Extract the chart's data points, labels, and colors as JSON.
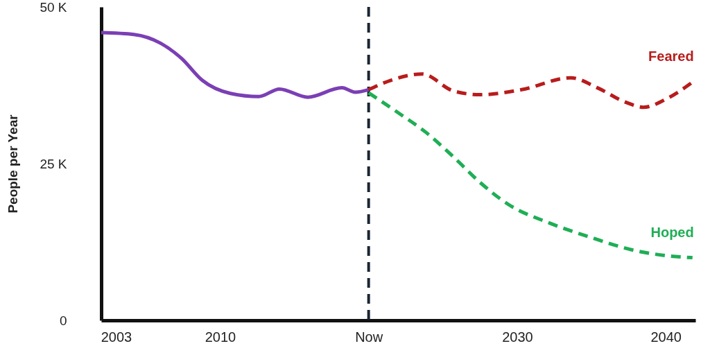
{
  "chart_data": {
    "type": "line",
    "ylabel": "People per Year",
    "xlim": [
      2002,
      2042
    ],
    "ylim": [
      0,
      50
    ],
    "xticks": [
      2003,
      2010,
      {
        "value": 2020,
        "label": "Now"
      },
      2030,
      2040
    ],
    "yticks": [
      {
        "value": 0,
        "label": "0"
      },
      {
        "value": 25,
        "label": "25 K"
      },
      {
        "value": 50,
        "label": "50 K"
      }
    ],
    "grid": false,
    "marker": "none",
    "ref_lines": [
      {
        "axis": "x",
        "value": 2020,
        "color": "#1a2633",
        "line_style": "dashed"
      }
    ],
    "series": [
      {
        "color": "#7b3fb5",
        "line_style": "solid",
        "x": [
          2002,
          2004.2,
          2006,
          2007.4,
          2008.8,
          2010.7,
          2012.6,
          2014,
          2015.9,
          2018.2,
          2019.1,
          2020
        ],
        "values": [
          45.9,
          45.6,
          44.2,
          41.8,
          38.3,
          36.2,
          35.7,
          36.9,
          35.6,
          37.1,
          36.4,
          36.8
        ]
      },
      {
        "name": "Feared",
        "color": "#b81c1c",
        "line_style": "dashed",
        "x": [
          2020,
          2021.5,
          2023.6,
          2025.7,
          2027.5,
          2030.3,
          2033.6,
          2035.4,
          2037.3,
          2038.5,
          2040.1,
          2041.8
        ],
        "values": [
          36.8,
          38.3,
          39.3,
          36.6,
          36.0,
          36.8,
          38.7,
          37.1,
          34.8,
          34.0,
          35.4,
          38.0
        ]
      },
      {
        "name": "Hoped",
        "color": "#1fae55",
        "line_style": "dashed",
        "x": [
          2020,
          2022,
          2023.8,
          2025.7,
          2027.5,
          2029.4,
          2032.2,
          2035,
          2037.8,
          2040.1,
          2041.8
        ],
        "values": [
          36.3,
          33.1,
          30.1,
          26.1,
          22.0,
          18.5,
          15.5,
          13.2,
          11.2,
          10.3,
          10.0
        ]
      }
    ]
  }
}
